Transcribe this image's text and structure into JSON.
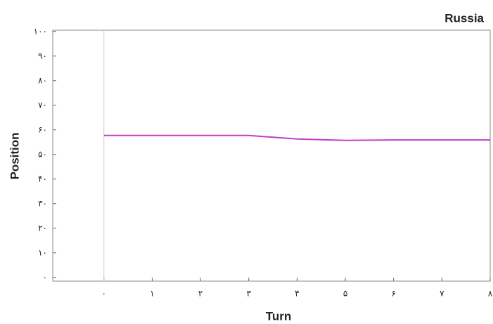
{
  "chart_data": {
    "type": "line",
    "title": "Russia",
    "xlabel": "Turn",
    "ylabel": "Position",
    "x": [
      0,
      1,
      2,
      3,
      4,
      5,
      6,
      7,
      8
    ],
    "series": [
      {
        "name": "Russia",
        "color": "#c03fc8",
        "values": [
          57.7,
          57.7,
          57.7,
          57.7,
          56.3,
          55.7,
          55.9,
          55.9,
          55.9
        ]
      }
    ],
    "xlim": [
      -1.06,
      8
    ],
    "ylim": [
      -1.5,
      100.5
    ],
    "xticks": [
      {
        "value": 0,
        "label": "۰"
      },
      {
        "value": 1,
        "label": "۱"
      },
      {
        "value": 2,
        "label": "۲"
      },
      {
        "value": 3,
        "label": "۳"
      },
      {
        "value": 4,
        "label": "۴"
      },
      {
        "value": 5,
        "label": "۵"
      },
      {
        "value": 6,
        "label": "۶"
      },
      {
        "value": 7,
        "label": "۷"
      },
      {
        "value": 8,
        "label": "۸"
      }
    ],
    "yticks": [
      {
        "value": 0,
        "label": "۰"
      },
      {
        "value": 10,
        "label": "۱۰"
      },
      {
        "value": 20,
        "label": "۲۰"
      },
      {
        "value": 30,
        "label": "۳۰"
      },
      {
        "value": 40,
        "label": "۴۰"
      },
      {
        "value": 50,
        "label": "۵۰"
      },
      {
        "value": 60,
        "label": "۶۰"
      },
      {
        "value": 70,
        "label": "۷۰"
      },
      {
        "value": 80,
        "label": "۸۰"
      },
      {
        "value": 90,
        "label": "۹۰"
      },
      {
        "value": 100,
        "label": "۱۰۰"
      }
    ],
    "grid": false
  }
}
